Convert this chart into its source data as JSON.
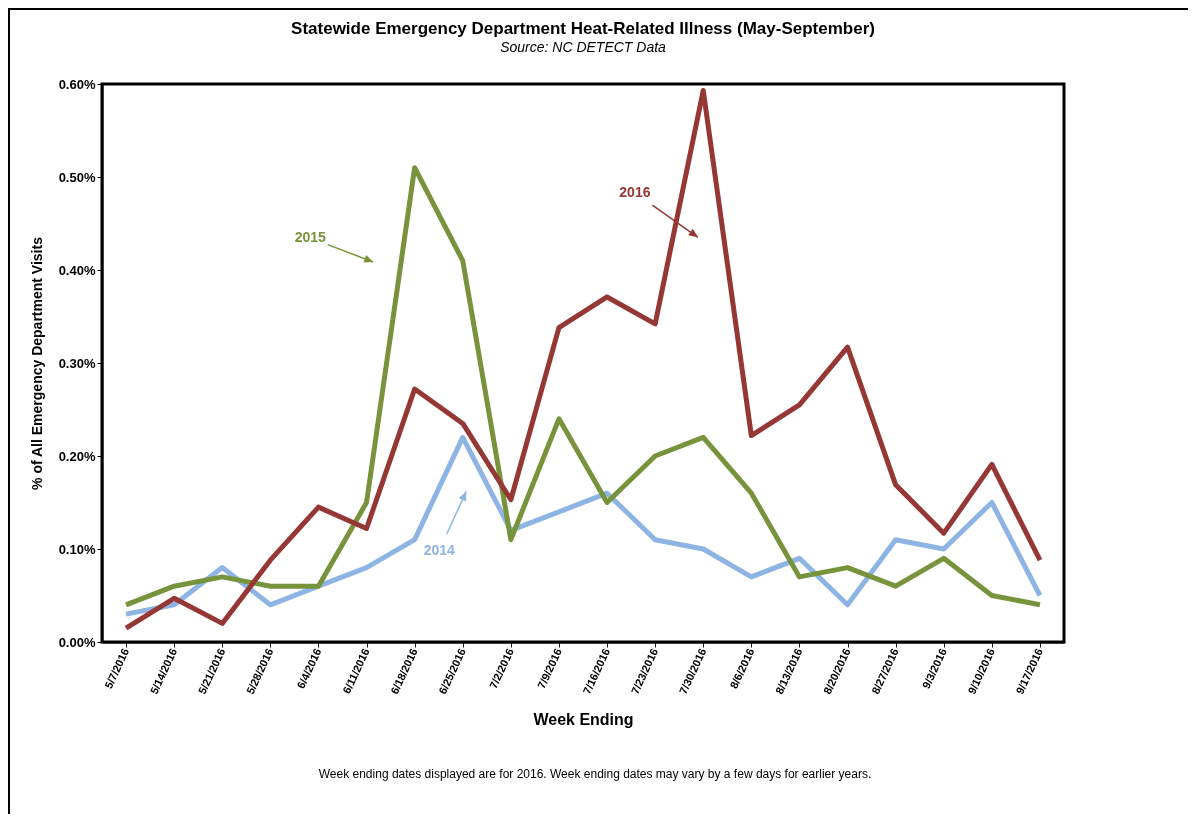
{
  "chart_data": {
    "type": "line",
    "title": "Statewide Emergency Department Heat-Related Illness (May-September)",
    "subtitle": "Source: NC DETECT Data",
    "xlabel": "Week Ending",
    "ylabel": "% of All Emergency Department Visits",
    "categories": [
      "5/7/2016",
      "5/14/2016",
      "5/21/2016",
      "5/28/2016",
      "6/4/2016",
      "6/11/2016",
      "6/18/2016",
      "6/25/2016",
      "7/2/2016",
      "7/9/2016",
      "7/16/2016",
      "7/23/2016",
      "7/30/2016",
      "8/6/2016",
      "8/13/2016",
      "8/20/2016",
      "8/27/2016",
      "9/3/2016",
      "9/10/2016",
      "9/17/2016"
    ],
    "series": [
      {
        "name": "2014",
        "color": "#8db4e2",
        "values": [
          0.03,
          0.04,
          0.08,
          0.04,
          0.06,
          0.08,
          0.11,
          0.22,
          0.12,
          0.14,
          0.16,
          0.11,
          0.1,
          0.07,
          0.09,
          0.04,
          0.11,
          0.1,
          0.15,
          0.05
        ]
      },
      {
        "name": "2015",
        "color": "#77933c",
        "values": [
          0.04,
          0.06,
          0.07,
          0.06,
          0.06,
          0.15,
          0.51,
          0.41,
          0.11,
          0.24,
          0.15,
          0.2,
          0.22,
          0.16,
          0.07,
          0.08,
          0.06,
          0.09,
          0.05,
          0.04
        ]
      },
      {
        "name": "2016",
        "color": "#953735",
        "values": [
          0.015,
          0.047,
          0.02,
          0.088,
          0.145,
          0.122,
          0.272,
          0.235,
          0.153,
          0.338,
          0.371,
          0.342,
          0.593,
          0.222,
          0.255,
          0.317,
          0.169,
          0.117,
          0.191,
          0.088
        ]
      }
    ],
    "ylim": [
      0,
      0.6
    ],
    "yticks": [
      {
        "value": 0,
        "label": "0.00%"
      },
      {
        "value": 0.1,
        "label": "0.10%"
      },
      {
        "value": 0.2,
        "label": "0.20%"
      },
      {
        "value": 0.3,
        "label": "0.30%"
      },
      {
        "value": 0.4,
        "label": "0.40%"
      },
      {
        "value": 0.5,
        "label": "0.50%"
      },
      {
        "value": 0.6,
        "label": "0.60%"
      }
    ],
    "grid": false,
    "legend": false,
    "marker": "none",
    "line_style": "solid",
    "annotations": [
      "Week ending dates displayed are for 2016. Week ending dates may vary by a few days for earlier years."
    ]
  }
}
